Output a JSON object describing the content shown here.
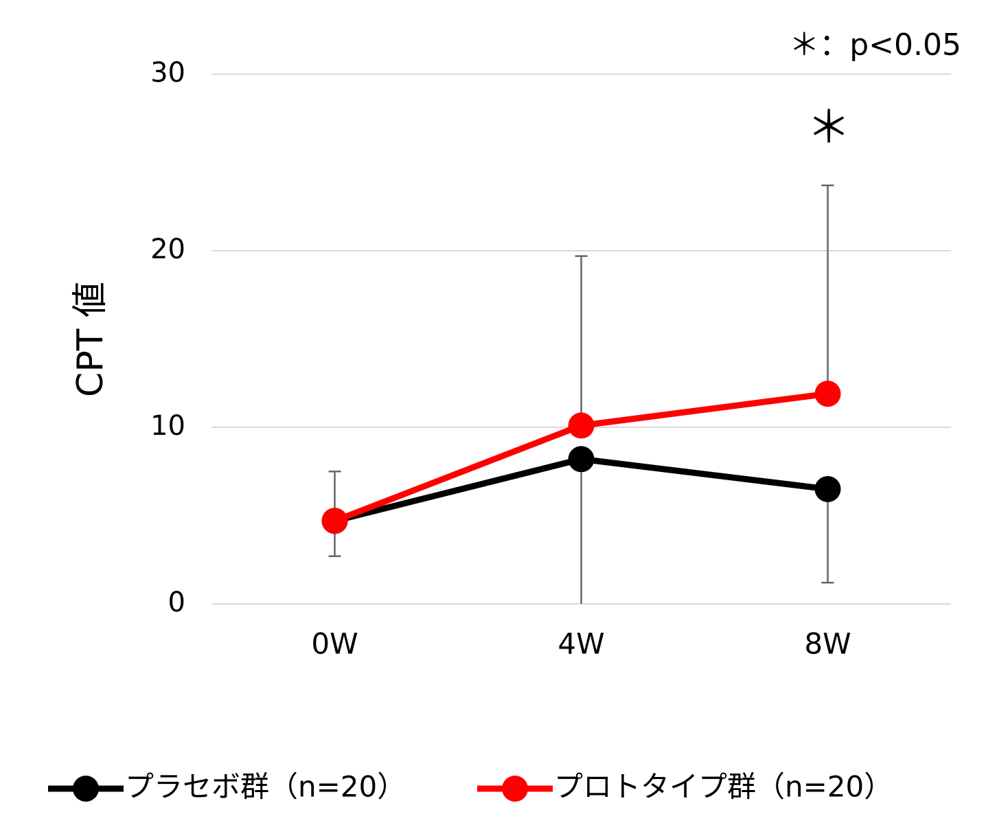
{
  "chart_data": {
    "type": "line",
    "y_label": "CPT 値",
    "annotations": [
      "＊：p<0.05",
      "＊"
    ],
    "categories": [
      "0W",
      "4W",
      "8W"
    ],
    "series": [
      {
        "name": "プラセボ群（n=20）",
        "color": "#000000",
        "values": [
          4.7,
          8.2,
          6.5
        ],
        "error_minus": [
          2.0,
          9.0,
          5.3
        ]
      },
      {
        "name": "プロトタイプ群（n=20）",
        "color": "#ff0000",
        "values": [
          4.7,
          10.1,
          11.9
        ],
        "error_plus": [
          2.8,
          9.6,
          11.8
        ]
      }
    ],
    "ylim": [
      0,
      30
    ],
    "yticks": [
      0,
      10,
      20,
      30
    ],
    "grid": true,
    "legend": "bottom"
  }
}
